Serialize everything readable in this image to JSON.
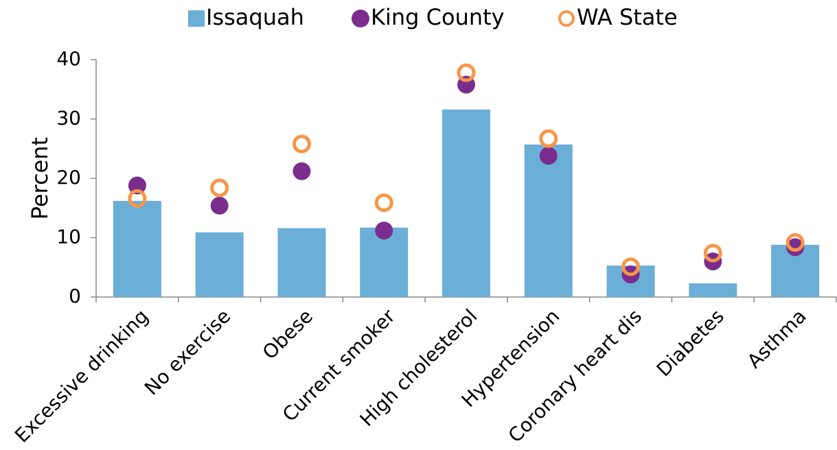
{
  "chart_data": {
    "type": "bar_dot",
    "y_label": "Percent",
    "categories": [
      "Excessive drinking",
      "No exercise",
      "Obese",
      "Current smoker",
      "High cholesterol",
      "Hypertension",
      "Coronary heart dis",
      "Diabetes",
      "Asthma"
    ],
    "series": [
      {
        "name": "Issaquah",
        "color": "#6baed6",
        "marker": "bar",
        "values": [
          16.2,
          10.9,
          11.6,
          11.7,
          31.6,
          25.7,
          5.3,
          2.3,
          8.8
        ]
      },
      {
        "name": "King County",
        "color": "#7b2d8e",
        "marker": "dot",
        "values": [
          18.8,
          15.4,
          21.2,
          11.2,
          35.8,
          23.8,
          3.8,
          6.0,
          8.4
        ]
      },
      {
        "name": "WA State",
        "color": "#f79646",
        "marker": "ring",
        "values": [
          16.6,
          18.4,
          25.8,
          15.9,
          37.8,
          26.7,
          5.1,
          7.4,
          9.2
        ]
      }
    ],
    "ylim": [
      0,
      40
    ],
    "yticks": [
      0,
      10,
      20,
      30,
      40
    ],
    "grid": false,
    "legend": "top"
  }
}
